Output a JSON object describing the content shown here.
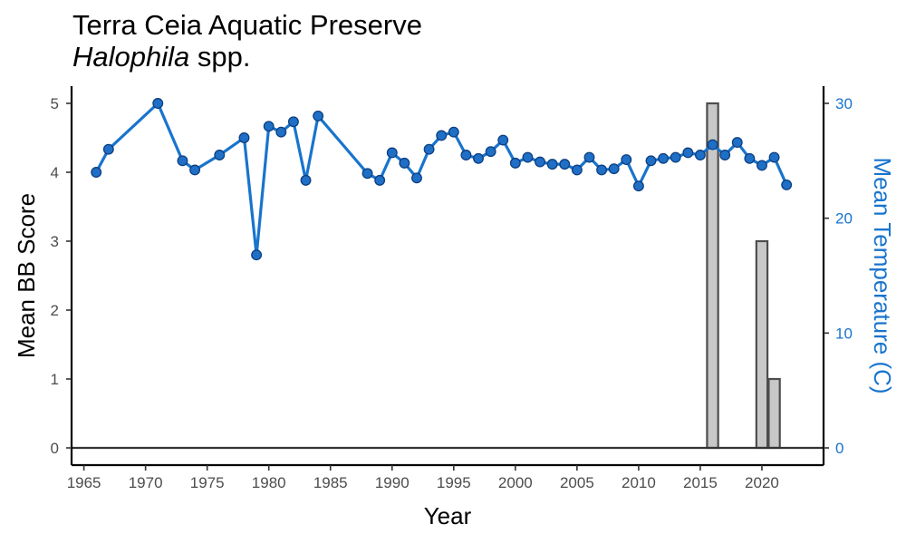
{
  "title": {
    "line1": "Terra Ceia Aquatic Preserve",
    "line2_italic": "Halophila",
    "line2_rest": " spp."
  },
  "chart_data": {
    "type": "bar+line",
    "xlabel": "Year",
    "ylabel_left": "Mean BB Score",
    "ylabel_right": "Mean Temperature (C)",
    "xlim": [
      1964,
      2025
    ],
    "ylim_left": [
      -0.25,
      5.25
    ],
    "ylim_right": [
      -1.5,
      31.5
    ],
    "x_ticks": [
      1965,
      1970,
      1975,
      1980,
      1985,
      1990,
      1995,
      2000,
      2005,
      2010,
      2015,
      2020
    ],
    "y_left_ticks": [
      0,
      1,
      2,
      3,
      4,
      5
    ],
    "y_right_ticks": [
      0,
      10,
      20,
      30
    ],
    "grid": false,
    "bars": {
      "name": "Mean BB Score",
      "axis": "left",
      "fill": "#c8c8c8",
      "stroke": "#4d4d4d",
      "x": [
        2016,
        2020,
        2021
      ],
      "values": [
        5,
        3,
        1
      ]
    },
    "line": {
      "name": "Mean Temperature",
      "axis": "right",
      "color": "#1874cd",
      "marker_fill": "#1f6fc6",
      "marker_stroke": "#0d3f80",
      "x": [
        1966,
        1967,
        1971,
        1973,
        1974,
        1976,
        1978,
        1979,
        1980,
        1981,
        1982,
        1983,
        1984,
        1988,
        1989,
        1990,
        1991,
        1992,
        1993,
        1994,
        1995,
        1996,
        1997,
        1998,
        1999,
        2000,
        2001,
        2002,
        2003,
        2004,
        2005,
        2006,
        2007,
        2008,
        2009,
        2010,
        2011,
        2012,
        2013,
        2014,
        2015,
        2016,
        2017,
        2018,
        2019,
        2020,
        2021,
        2022
      ],
      "y": [
        24.0,
        26.0,
        30.0,
        25.0,
        24.2,
        25.5,
        27.0,
        16.8,
        28.0,
        27.5,
        28.4,
        23.3,
        28.9,
        23.9,
        23.3,
        25.7,
        24.8,
        23.5,
        26.0,
        27.2,
        27.5,
        25.5,
        25.2,
        25.8,
        26.8,
        24.8,
        25.3,
        24.9,
        24.7,
        24.7,
        24.2,
        25.3,
        24.2,
        24.3,
        25.1,
        22.8,
        25.0,
        25.2,
        25.3,
        25.7,
        25.5,
        26.4,
        25.5,
        26.6,
        25.2,
        24.6,
        25.3,
        22.9
      ]
    }
  }
}
